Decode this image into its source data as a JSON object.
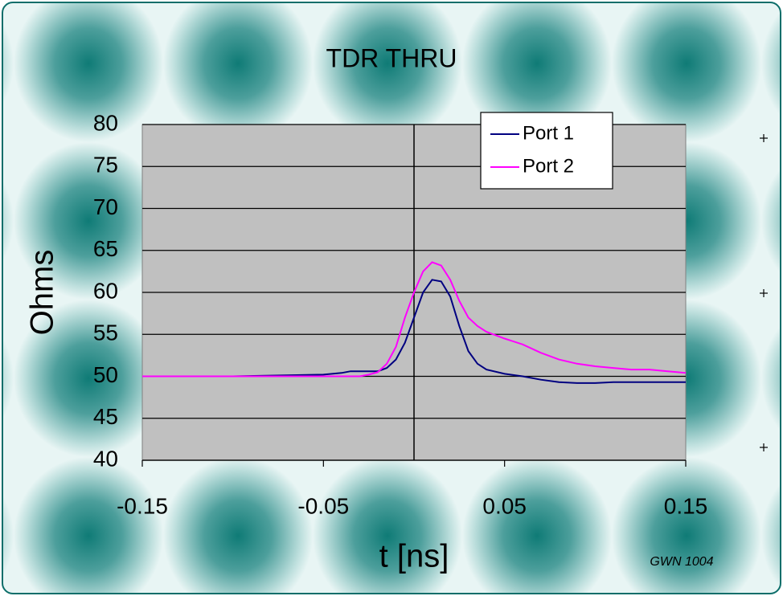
{
  "chart_data": {
    "type": "line",
    "title": "TDR THRU",
    "x_label": "t [ns]",
    "y_label": "Ohms",
    "annotation": "GWN 1004",
    "x": [
      -0.15,
      -0.1,
      -0.05,
      -0.04,
      -0.035,
      -0.03,
      -0.025,
      -0.02,
      -0.015,
      -0.01,
      -0.005,
      0,
      0.005,
      0.01,
      0.015,
      0.02,
      0.025,
      0.03,
      0.035,
      0.04,
      0.05,
      0.06,
      0.07,
      0.08,
      0.09,
      0.1,
      0.11,
      0.12,
      0.13,
      0.14,
      0.15
    ],
    "series": [
      {
        "name": "Port 1",
        "color": "#000080",
        "values": [
          50,
          50,
          50.2,
          50.4,
          50.6,
          50.6,
          50.6,
          50.6,
          51,
          52,
          54,
          57,
          60,
          61.5,
          61.3,
          59.5,
          56,
          53,
          51.5,
          50.8,
          50.3,
          50,
          49.6,
          49.3,
          49.2,
          49.2,
          49.3,
          49.3,
          49.3,
          49.3,
          49.3
        ]
      },
      {
        "name": "Port 2",
        "color": "#ff00ff",
        "values": [
          50,
          50,
          50,
          50,
          50,
          50,
          50.2,
          50.5,
          51.5,
          53.5,
          57,
          60,
          62.5,
          63.6,
          63.2,
          61.5,
          59,
          57,
          56,
          55.3,
          54.5,
          53.8,
          52.8,
          52,
          51.5,
          51.2,
          51,
          50.8,
          50.8,
          50.6,
          50.4
        ]
      }
    ],
    "xlim": [
      -0.15,
      0.15
    ],
    "xticks": [
      -0.15,
      -0.05,
      0.05,
      0.15
    ],
    "ylim": [
      40,
      80
    ],
    "yticks": [
      40,
      45,
      50,
      55,
      60,
      65,
      70,
      75,
      80
    ],
    "y_axis_crosses_at": 0,
    "grid": true,
    "legend": "top-right"
  }
}
